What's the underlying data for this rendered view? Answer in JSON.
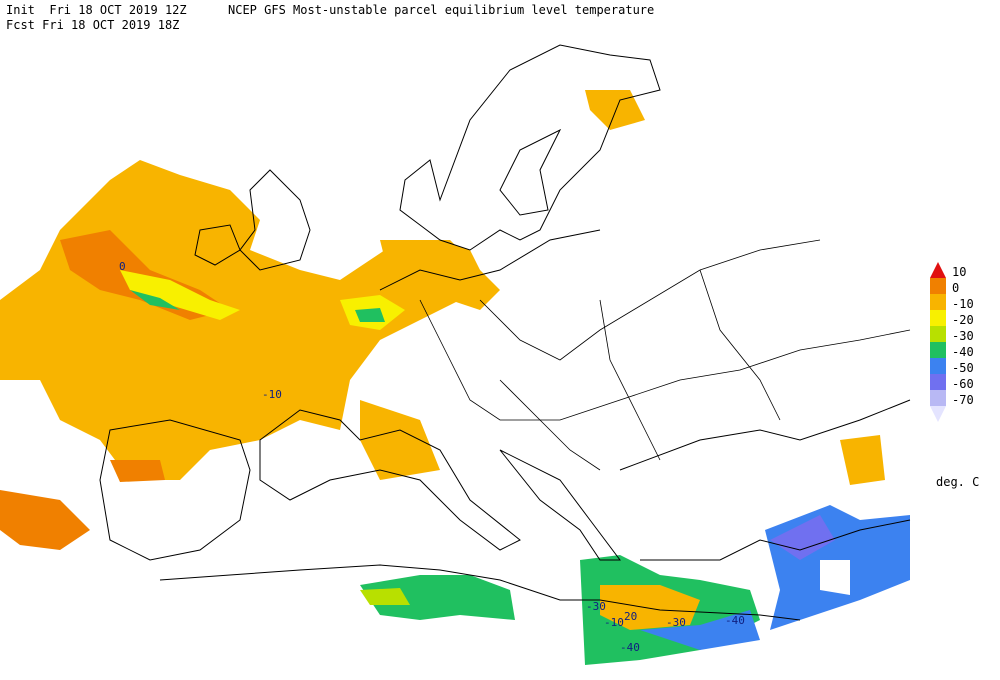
{
  "header": {
    "init": "Init  Fri 18 OCT 2019 12Z",
    "title": "NCEP GFS Most-unstable parcel equilibrium level temperature",
    "fcst": "Fcst Fri 18 OCT 2019 18Z"
  },
  "legend": {
    "levels": [
      10,
      0,
      -10,
      -20,
      -30,
      -40,
      -50,
      -60,
      -70
    ],
    "colors": [
      "#e01010",
      "#f08000",
      "#f8b400",
      "#f8f000",
      "#b8e000",
      "#20c060",
      "#3c82f0",
      "#7070f0",
      "#b8b8f4",
      "#e4e4ff"
    ],
    "unit": "deg. C"
  },
  "contour_labels": [
    "0",
    "-10",
    "-30",
    "-10",
    "20",
    "-30",
    "-40",
    "-40"
  ]
}
